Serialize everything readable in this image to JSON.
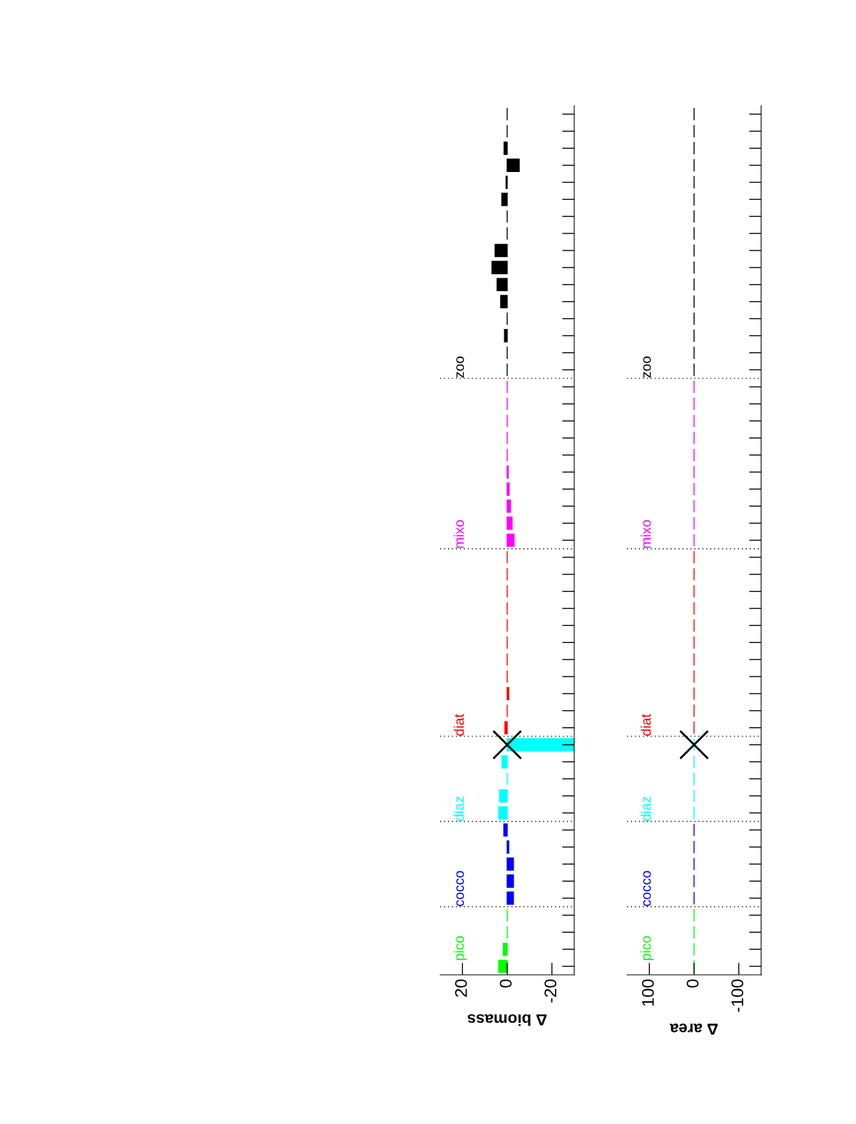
{
  "chart_data": [
    {
      "type": "bar",
      "orientation": "horizontal",
      "xlabel": "Δ biomass",
      "xlim": [
        30,
        -30
      ],
      "xticks": [
        20,
        0,
        -20
      ],
      "categories": [
        null,
        null,
        null,
        null,
        null,
        null,
        null,
        null,
        null,
        null,
        null,
        null,
        null,
        null,
        null,
        null,
        null,
        null,
        null,
        null,
        null,
        null,
        null,
        null,
        null,
        null,
        null,
        null,
        null,
        null,
        null,
        null,
        null,
        null,
        null,
        null,
        null,
        null,
        null,
        null,
        null,
        null,
        null,
        null,
        null,
        null,
        null,
        null,
        null,
        null,
        null
      ],
      "series": [
        {
          "name": "pico",
          "color": "#00ff00",
          "values": [
            null,
            null,
            null,
            null,
            null,
            null,
            null,
            null,
            null,
            null,
            null,
            null,
            null,
            null,
            null,
            null,
            null,
            null,
            null,
            null,
            null,
            null,
            null,
            null,
            null,
            null,
            null,
            null,
            null,
            null,
            null,
            null,
            null,
            null,
            null,
            null,
            null,
            null,
            null,
            null,
            null,
            null,
            null,
            null,
            null,
            null,
            null,
            0,
            0,
            1.7,
            3.8
          ]
        },
        {
          "name": "cocco",
          "color": "#0000ff",
          "values": [
            null,
            null,
            null,
            null,
            null,
            null,
            null,
            null,
            null,
            null,
            null,
            null,
            null,
            null,
            null,
            null,
            null,
            null,
            null,
            null,
            null,
            null,
            null,
            null,
            null,
            null,
            null,
            null,
            null,
            null,
            null,
            null,
            null,
            null,
            null,
            null,
            null,
            null,
            null,
            null,
            null,
            null,
            1.5,
            -0.7,
            -2.8,
            -2.8,
            -2.8,
            null,
            null,
            null,
            null
          ]
        },
        {
          "name": "diaz",
          "color": "#00ffff",
          "values": [
            null,
            null,
            null,
            null,
            null,
            null,
            null,
            null,
            null,
            null,
            null,
            null,
            null,
            null,
            null,
            null,
            null,
            null,
            null,
            null,
            null,
            null,
            null,
            null,
            null,
            null,
            null,
            null,
            null,
            null,
            null,
            null,
            null,
            null,
            null,
            null,
            null,
            -30,
            2.3,
            0,
            3.4,
            3.8,
            null,
            null,
            null,
            null,
            null,
            null,
            null,
            null,
            null
          ]
        },
        {
          "name": "diat",
          "color": "#ff0000",
          "values": [
            null,
            null,
            null,
            null,
            null,
            null,
            null,
            null,
            null,
            null,
            null,
            null,
            null,
            null,
            null,
            null,
            null,
            null,
            null,
            null,
            null,
            null,
            null,
            null,
            null,
            null,
            0,
            0,
            0,
            0,
            0,
            0,
            0,
            0,
            -0.7,
            0,
            1.0,
            null,
            null,
            null,
            null,
            null,
            null,
            null,
            null,
            null,
            null,
            null,
            null,
            null,
            null
          ]
        },
        {
          "name": "mixo",
          "color": "#ff00ff",
          "values": [
            null,
            null,
            null,
            null,
            null,
            null,
            null,
            null,
            null,
            null,
            null,
            null,
            null,
            null,
            null,
            null,
            0,
            0,
            0,
            0,
            0,
            -0.5,
            -0.9,
            -1.5,
            -2.2,
            -3.1,
            null,
            null,
            null,
            null,
            null,
            null,
            null,
            null,
            null,
            null,
            null,
            null,
            null,
            null,
            null,
            null,
            null,
            null,
            null,
            null,
            null,
            null,
            null,
            null,
            null
          ]
        },
        {
          "name": "zoo",
          "color": "#000000",
          "values": [
            0,
            0,
            1.4,
            -5.4,
            0.5,
            2.4,
            0,
            0,
            5.4,
            6.8,
            4.5,
            2.9,
            0,
            1.2,
            0,
            0,
            null,
            null,
            null,
            null,
            null,
            null,
            null,
            null,
            null,
            null,
            null,
            null,
            null,
            null,
            null,
            null,
            null,
            null,
            null,
            null,
            null,
            null,
            null,
            null,
            null,
            null,
            null,
            null,
            null,
            null,
            null,
            null,
            null,
            null,
            null
          ]
        },
        {
          "type": "scatter",
          "marker": "cross",
          "color": "#000000",
          "values": [
            null,
            null,
            null,
            null,
            null,
            null,
            null,
            null,
            null,
            null,
            null,
            null,
            null,
            null,
            null,
            null,
            null,
            null,
            null,
            null,
            null,
            null,
            null,
            null,
            null,
            null,
            null,
            null,
            null,
            null,
            null,
            null,
            null,
            null,
            null,
            null,
            null,
            0,
            null,
            null,
            null,
            null,
            null,
            null,
            null,
            null,
            null,
            null,
            null,
            null,
            null
          ]
        }
      ]
    },
    {
      "type": "bar",
      "orientation": "horizontal",
      "xlabel": "Δ area",
      "xlim": [
        150,
        -150
      ],
      "xticks": [
        100,
        0,
        -100
      ],
      "categories": [
        null,
        null,
        null,
        null,
        null,
        null,
        null,
        null,
        null,
        null,
        null,
        null,
        null,
        null,
        null,
        null,
        null,
        null,
        null,
        null,
        null,
        null,
        null,
        null,
        null,
        null,
        null,
        null,
        null,
        null,
        null,
        null,
        null,
        null,
        null,
        null,
        null,
        null,
        null,
        null,
        null,
        null,
        null,
        null,
        null,
        null,
        null,
        null,
        null,
        null,
        null
      ],
      "series": [
        {
          "name": "pico",
          "color": "#00ff00",
          "values": [
            null,
            null,
            null,
            null,
            null,
            null,
            null,
            null,
            null,
            null,
            null,
            null,
            null,
            null,
            null,
            null,
            null,
            null,
            null,
            null,
            null,
            null,
            null,
            null,
            null,
            null,
            null,
            null,
            null,
            null,
            null,
            null,
            null,
            null,
            null,
            null,
            null,
            null,
            null,
            null,
            null,
            null,
            null,
            null,
            null,
            null,
            null,
            0,
            0,
            0,
            0
          ]
        },
        {
          "name": "cocco",
          "color": "#0000ff",
          "values": [
            null,
            null,
            null,
            null,
            null,
            null,
            null,
            null,
            null,
            null,
            null,
            null,
            null,
            null,
            null,
            null,
            null,
            null,
            null,
            null,
            null,
            null,
            null,
            null,
            null,
            null,
            null,
            null,
            null,
            null,
            null,
            null,
            null,
            null,
            null,
            null,
            null,
            null,
            null,
            null,
            null,
            null,
            0,
            0,
            0,
            0,
            0,
            null,
            null,
            null,
            null
          ]
        },
        {
          "name": "diaz",
          "color": "#00ffff",
          "values": [
            null,
            null,
            null,
            null,
            null,
            null,
            null,
            null,
            null,
            null,
            null,
            null,
            null,
            null,
            null,
            null,
            null,
            null,
            null,
            null,
            null,
            null,
            null,
            null,
            null,
            null,
            null,
            null,
            null,
            null,
            null,
            null,
            null,
            null,
            null,
            null,
            null,
            0,
            0,
            0,
            0,
            0,
            null,
            null,
            null,
            null,
            null,
            null,
            null,
            null,
            null
          ]
        },
        {
          "name": "diat",
          "color": "#ff0000",
          "values": [
            null,
            null,
            null,
            null,
            null,
            null,
            null,
            null,
            null,
            null,
            null,
            null,
            null,
            null,
            null,
            null,
            null,
            null,
            null,
            null,
            null,
            null,
            null,
            null,
            null,
            null,
            0,
            0,
            0,
            0,
            0,
            0,
            0,
            0,
            0,
            0,
            0,
            null,
            null,
            null,
            null,
            null,
            null,
            null,
            null,
            null,
            null,
            null,
            null,
            null,
            null
          ]
        },
        {
          "name": "mixo",
          "color": "#ff00ff",
          "values": [
            null,
            null,
            null,
            null,
            null,
            null,
            null,
            null,
            null,
            null,
            null,
            null,
            null,
            null,
            null,
            null,
            0,
            0,
            0,
            0,
            0,
            0,
            0,
            0,
            0,
            0,
            null,
            null,
            null,
            null,
            null,
            null,
            null,
            null,
            null,
            null,
            null,
            null,
            null,
            null,
            null,
            null,
            null,
            null,
            null,
            null,
            null,
            null,
            null,
            null,
            null
          ]
        },
        {
          "name": "zoo",
          "color": "#000000",
          "values": [
            0,
            0,
            0,
            0,
            0,
            0,
            0,
            0,
            0,
            0,
            0,
            0,
            0,
            0,
            0,
            0,
            null,
            null,
            null,
            null,
            null,
            null,
            null,
            null,
            null,
            null,
            null,
            null,
            null,
            null,
            null,
            null,
            null,
            null,
            null,
            null,
            null,
            null,
            null,
            null,
            null,
            null,
            null,
            null,
            null,
            null,
            null,
            null,
            null,
            null,
            null
          ]
        },
        {
          "type": "scatter",
          "marker": "cross",
          "color": "#000000",
          "values": [
            null,
            null,
            null,
            null,
            null,
            null,
            null,
            null,
            null,
            null,
            null,
            null,
            null,
            null,
            null,
            null,
            null,
            null,
            null,
            null,
            null,
            null,
            null,
            null,
            null,
            null,
            null,
            null,
            null,
            null,
            null,
            null,
            null,
            null,
            null,
            null,
            null,
            0,
            null,
            null,
            null,
            null,
            null,
            null,
            null,
            null,
            null,
            null,
            null,
            null,
            null
          ]
        }
      ]
    }
  ]
}
